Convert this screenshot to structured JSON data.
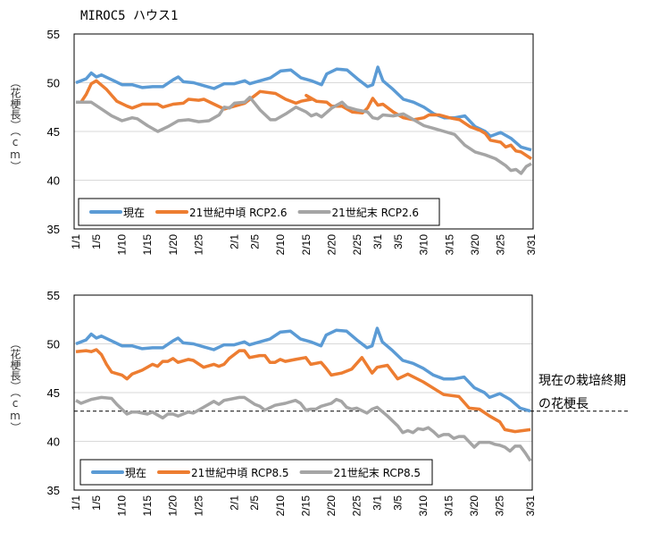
{
  "chart_data": [
    {
      "type": "line",
      "title": "MIROC5 ハウス1",
      "ylabel": "（花梗長）（cm）",
      "ylabel_parts": [
        "（花梗長）",
        "（cm）"
      ],
      "ylim": [
        35,
        55
      ],
      "y_ticks": [
        "35",
        "40",
        "45",
        "50",
        "55"
      ],
      "x_ticks": [
        "1/1",
        "1/5",
        "1/10",
        "1/15",
        "1/20",
        "1/25",
        "2/1",
        "2/5",
        "2/10",
        "2/15",
        "2/20",
        "2/25",
        "3/1",
        "3/5",
        "3/10",
        "3/15",
        "3/20",
        "3/25",
        "3/31"
      ],
      "xlim": [
        "1/1",
        "3/31"
      ],
      "grid": true,
      "legend": "bottom-left",
      "series": [
        {
          "name": "現在",
          "color": "#5B9BD5",
          "x": [
            "1/1",
            "1/3",
            "1/4",
            "1/5",
            "1/6",
            "1/8",
            "1/10",
            "1/12",
            "1/14",
            "1/16",
            "1/18",
            "1/20",
            "1/21",
            "1/22",
            "1/24",
            "1/26",
            "1/28",
            "1/30",
            "2/1",
            "2/3",
            "2/4",
            "2/6",
            "2/8",
            "2/10",
            "2/12",
            "2/14",
            "2/16",
            "2/18",
            "2/19",
            "2/21",
            "2/23",
            "2/25",
            "2/27",
            "2/28",
            "3/1",
            "3/2",
            "3/4",
            "3/6",
            "3/8",
            "3/10",
            "3/12",
            "3/14",
            "3/16",
            "3/18",
            "3/20",
            "3/22",
            "3/23",
            "3/25",
            "3/27",
            "3/29",
            "3/31"
          ],
          "y": [
            50.0,
            50.4,
            51.0,
            50.6,
            50.8,
            50.3,
            49.8,
            49.8,
            49.5,
            49.6,
            49.6,
            50.3,
            50.6,
            50.1,
            50.0,
            49.7,
            49.4,
            49.9,
            49.9,
            50.2,
            49.9,
            50.2,
            50.5,
            51.2,
            51.3,
            50.5,
            50.2,
            49.8,
            50.9,
            51.4,
            51.3,
            50.4,
            49.6,
            49.8,
            51.6,
            50.2,
            49.3,
            48.3,
            48.0,
            47.5,
            46.8,
            46.4,
            46.4,
            46.6,
            45.5,
            45.0,
            44.5,
            44.9,
            44.3,
            43.4,
            43.1
          ]
        },
        {
          "name": "21世紀中頃 RCP2.6",
          "color": "#ED7D31",
          "x": [
            "1/1",
            "1/2",
            "1/3",
            "1/4",
            "1/5",
            "1/7",
            "1/9",
            "1/11",
            "1/12",
            "1/14",
            "1/17",
            "1/18",
            "1/20",
            "1/22",
            "1/23",
            "1/25",
            "1/26",
            "1/28",
            "1/30",
            "2/1",
            "2/3",
            "2/5",
            "2/6",
            "2/9",
            "2/11",
            "2/13",
            "2/14",
            "2/16",
            "2/15",
            "2/17",
            "2/19",
            "2/20",
            "2/22",
            "2/24",
            "2/26",
            "2/27",
            "2/28",
            "3/1",
            "3/2",
            "3/4",
            "3/6",
            "3/8",
            "3/10",
            "3/11",
            "3/13",
            "3/15",
            "3/17",
            "3/19",
            "3/21",
            "3/22",
            "3/23",
            "3/25",
            "3/26",
            "3/27",
            "3/28",
            "3/29",
            "3/31"
          ],
          "y": [
            48.0,
            48.0,
            48.8,
            49.9,
            50.2,
            49.3,
            48.1,
            47.6,
            47.4,
            47.8,
            47.8,
            47.5,
            47.8,
            47.9,
            48.3,
            48.2,
            48.3,
            47.8,
            47.3,
            47.6,
            47.9,
            48.7,
            49.1,
            48.9,
            48.3,
            47.9,
            48.1,
            48.3,
            48.7,
            48.1,
            48.0,
            47.6,
            47.6,
            47.0,
            46.9,
            47.4,
            48.4,
            47.7,
            47.8,
            47.0,
            46.4,
            46.2,
            46.4,
            46.7,
            46.7,
            46.4,
            46.2,
            45.5,
            45.1,
            44.8,
            44.1,
            43.9,
            43.4,
            43.6,
            43.0,
            42.9,
            42.2
          ]
        },
        {
          "name": "21世紀末 RCP2.6",
          "color": "#A5A5A5",
          "x": [
            "1/1",
            "1/4",
            "1/6",
            "1/8",
            "1/10",
            "1/12",
            "1/13",
            "1/15",
            "1/17",
            "1/19",
            "1/21",
            "1/23",
            "1/25",
            "1/27",
            "1/29",
            "1/30",
            "1/31",
            "2/1",
            "2/3",
            "2/4",
            "2/6",
            "2/8",
            "2/9",
            "2/11",
            "2/13",
            "2/15",
            "2/16",
            "2/17",
            "2/18",
            "2/20",
            "2/22",
            "2/23",
            "2/25",
            "2/27",
            "2/28",
            "3/1",
            "3/2",
            "3/4",
            "3/6",
            "3/8",
            "3/10",
            "3/12",
            "3/14",
            "3/16",
            "3/18",
            "3/20",
            "3/22",
            "3/24",
            "3/26",
            "3/27",
            "3/28",
            "3/29",
            "3/30",
            "3/31"
          ],
          "y": [
            48.0,
            48.0,
            47.3,
            46.6,
            46.1,
            46.4,
            46.3,
            45.6,
            45.0,
            45.5,
            46.1,
            46.2,
            46.0,
            46.1,
            46.7,
            47.5,
            47.4,
            47.9,
            48.0,
            48.5,
            47.2,
            46.2,
            46.2,
            46.8,
            47.5,
            47.0,
            46.6,
            46.8,
            46.5,
            47.4,
            48.0,
            47.5,
            47.2,
            47.0,
            46.4,
            46.3,
            46.7,
            46.6,
            46.8,
            46.2,
            45.6,
            45.3,
            45.0,
            44.7,
            43.6,
            42.9,
            42.6,
            42.2,
            41.5,
            41.0,
            41.1,
            40.7,
            41.4,
            41.7
          ]
        }
      ]
    },
    {
      "type": "line",
      "ylabel": "（花梗長）（cm）",
      "ylabel_parts": [
        "（花梗長）",
        "（cm）"
      ],
      "ylim": [
        35,
        55
      ],
      "y_ticks": [
        "35",
        "40",
        "45",
        "50",
        "55"
      ],
      "x_ticks": [
        "1/1",
        "1/5",
        "1/10",
        "1/15",
        "1/20",
        "1/25",
        "2/1",
        "2/5",
        "2/10",
        "2/15",
        "2/20",
        "2/25",
        "3/1",
        "3/5",
        "3/10",
        "3/15",
        "3/20",
        "3/25",
        "3/31"
      ],
      "xlim": [
        "1/1",
        "3/31"
      ],
      "grid": true,
      "legend": "bottom-left",
      "reference_line": {
        "y": 43.1,
        "style": "dashed",
        "label_lines": [
          "現在の栽培終期",
          "の花梗長"
        ]
      },
      "series": [
        {
          "name": "現在",
          "color": "#5B9BD5",
          "x": [
            "1/1",
            "1/3",
            "1/4",
            "1/5",
            "1/6",
            "1/8",
            "1/10",
            "1/12",
            "1/14",
            "1/16",
            "1/18",
            "1/20",
            "1/21",
            "1/22",
            "1/24",
            "1/26",
            "1/28",
            "1/30",
            "2/1",
            "2/3",
            "2/4",
            "2/6",
            "2/8",
            "2/10",
            "2/12",
            "2/14",
            "2/16",
            "2/18",
            "2/19",
            "2/21",
            "2/23",
            "2/25",
            "2/27",
            "2/28",
            "3/1",
            "3/2",
            "3/4",
            "3/6",
            "3/8",
            "3/10",
            "3/12",
            "3/14",
            "3/16",
            "3/18",
            "3/20",
            "3/22",
            "3/23",
            "3/25",
            "3/27",
            "3/29",
            "3/31"
          ],
          "y": [
            50.0,
            50.4,
            51.0,
            50.6,
            50.8,
            50.3,
            49.8,
            49.8,
            49.5,
            49.6,
            49.6,
            50.3,
            50.6,
            50.1,
            50.0,
            49.7,
            49.4,
            49.9,
            49.9,
            50.2,
            49.9,
            50.2,
            50.5,
            51.2,
            51.3,
            50.5,
            50.2,
            49.8,
            50.9,
            51.4,
            51.3,
            50.4,
            49.6,
            49.8,
            51.6,
            50.2,
            49.3,
            48.3,
            48.0,
            47.5,
            46.8,
            46.4,
            46.4,
            46.6,
            45.5,
            45.0,
            44.5,
            44.9,
            44.3,
            43.4,
            43.1
          ]
        },
        {
          "name": "21世紀中頃 RCP8.5",
          "color": "#ED7D31",
          "x": [
            "1/1",
            "1/3",
            "1/4",
            "1/5",
            "1/6",
            "1/7",
            "1/8",
            "1/10",
            "1/11",
            "1/12",
            "1/14",
            "1/16",
            "1/17",
            "1/18",
            "1/19",
            "1/20",
            "1/21",
            "1/23",
            "1/24",
            "1/26",
            "1/28",
            "1/29",
            "1/30",
            "1/31",
            "2/2",
            "2/3",
            "2/4",
            "2/6",
            "2/7",
            "2/8",
            "2/9",
            "2/10",
            "2/11",
            "2/13",
            "2/15",
            "2/16",
            "2/18",
            "2/19",
            "2/20",
            "2/22",
            "2/24",
            "2/26",
            "2/28",
            "3/1",
            "3/3",
            "3/5",
            "3/7",
            "3/10",
            "3/14",
            "3/17",
            "3/19",
            "3/21",
            "3/23",
            "3/25",
            "3/26",
            "3/28",
            "3/31"
          ],
          "y": [
            49.2,
            49.3,
            49.2,
            49.4,
            48.9,
            47.9,
            47.1,
            46.8,
            46.4,
            46.9,
            47.3,
            47.9,
            47.7,
            48.2,
            48.2,
            48.5,
            48.1,
            48.4,
            48.3,
            47.6,
            47.9,
            47.7,
            47.9,
            48.5,
            49.3,
            49.3,
            48.6,
            48.8,
            48.8,
            48.1,
            48.1,
            48.4,
            48.2,
            48.4,
            48.6,
            47.9,
            48.1,
            47.5,
            46.8,
            47.0,
            47.4,
            48.6,
            47.0,
            47.6,
            47.8,
            46.4,
            46.9,
            46.1,
            44.8,
            44.6,
            43.4,
            43.3,
            42.6,
            42.0,
            41.2,
            41.0,
            41.2
          ]
        },
        {
          "name": "21世紀末 RCP8.5",
          "color": "#A5A5A5",
          "x": [
            "1/1",
            "1/2",
            "1/4",
            "1/6",
            "1/8",
            "1/9",
            "1/11",
            "1/12",
            "1/13",
            "1/15",
            "1/16",
            "1/18",
            "1/19",
            "1/20",
            "1/21",
            "1/23",
            "1/24",
            "1/26",
            "1/28",
            "1/29",
            "1/30",
            "2/1",
            "2/2",
            "2/3",
            "2/5",
            "2/6",
            "2/7",
            "2/9",
            "2/11",
            "2/13",
            "2/14",
            "2/15",
            "2/16",
            "2/17",
            "2/18",
            "2/20",
            "2/21",
            "2/22",
            "2/23",
            "2/24",
            "2/25",
            "2/27",
            "2/28",
            "3/1",
            "3/3",
            "3/5",
            "3/6",
            "3/7",
            "3/8",
            "3/9",
            "3/10",
            "3/11",
            "3/12",
            "3/13",
            "3/14",
            "3/15",
            "3/16",
            "3/17",
            "3/18",
            "3/20",
            "3/21",
            "3/23",
            "3/24",
            "3/25",
            "3/26",
            "3/27",
            "3/28",
            "3/29",
            "3/30",
            "3/31"
          ],
          "y": [
            44.2,
            43.9,
            44.3,
            44.5,
            44.4,
            43.8,
            42.8,
            43.0,
            43.0,
            42.8,
            43.0,
            42.4,
            42.8,
            42.8,
            42.6,
            43.0,
            42.9,
            43.5,
            44.1,
            43.8,
            44.2,
            44.4,
            44.5,
            44.5,
            43.8,
            43.6,
            43.2,
            43.7,
            43.9,
            44.2,
            43.9,
            43.2,
            43.3,
            43.3,
            43.6,
            43.9,
            44.3,
            44.1,
            43.5,
            43.3,
            43.4,
            42.9,
            43.3,
            43.5,
            42.6,
            41.6,
            40.9,
            41.1,
            40.9,
            41.3,
            41.2,
            41.4,
            41.0,
            40.5,
            40.7,
            40.7,
            40.3,
            40.5,
            40.5,
            39.4,
            39.9,
            39.9,
            39.7,
            39.6,
            39.4,
            39.0,
            39.5,
            39.5,
            38.8,
            38.0
          ]
        }
      ]
    }
  ]
}
